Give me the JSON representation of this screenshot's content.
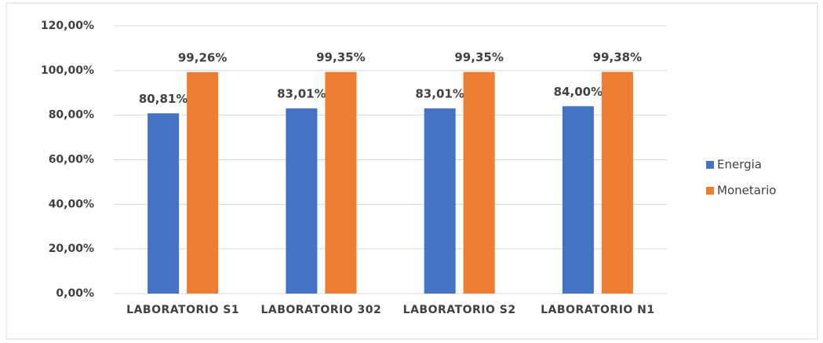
{
  "chart_data": {
    "type": "bar",
    "categories": [
      "LABORATORIO S1",
      "LABORATORIO 302",
      "LABORATORIO S2",
      "LABORATORIO N1"
    ],
    "series": [
      {
        "name": "Energia",
        "color": "#4472c4",
        "values": [
          80.81,
          83.01,
          83.01,
          84.0
        ],
        "value_labels": [
          "80,81%",
          "83,01%",
          "83,01%",
          "84,00%"
        ]
      },
      {
        "name": "Monetario",
        "color": "#ed7d31",
        "values": [
          99.26,
          99.35,
          99.35,
          99.38
        ],
        "value_labels": [
          "99,26%",
          "99,35%",
          "99,35%",
          "99,38%"
        ]
      }
    ],
    "ylim": [
      0,
      120
    ],
    "yticks": [
      {
        "value": 0,
        "label": "0,00%"
      },
      {
        "value": 20,
        "label": "20,00%"
      },
      {
        "value": 40,
        "label": "40,00%"
      },
      {
        "value": 60,
        "label": "60,00%"
      },
      {
        "value": 80,
        "label": "80,00%"
      },
      {
        "value": 100,
        "label": "100,00%"
      },
      {
        "value": 120,
        "label": "120,00%"
      }
    ],
    "grid": true,
    "legend": "right"
  }
}
